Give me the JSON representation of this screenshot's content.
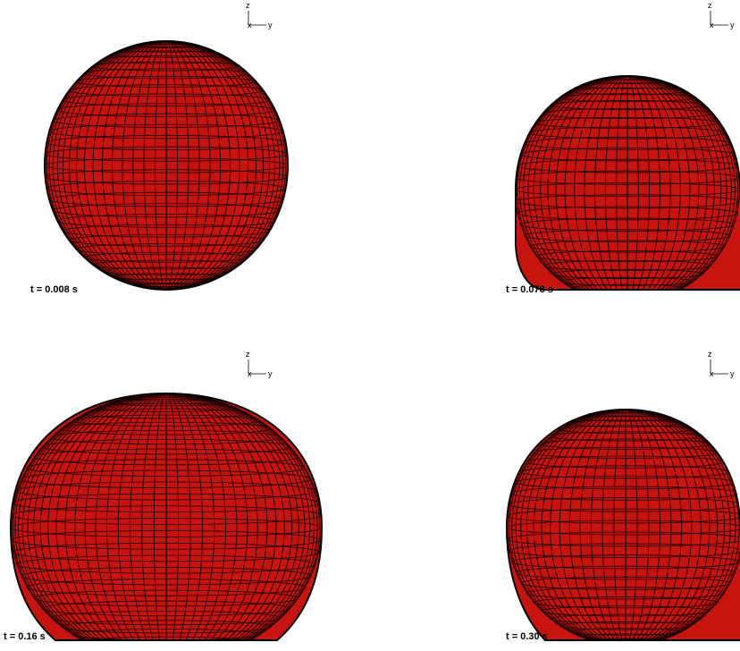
{
  "panels": [
    {
      "time_label": "t = 0.008 s",
      "shape": "sphere"
    },
    {
      "time_label": "t = 0.078 s",
      "shape": "flattened-bottom"
    },
    {
      "time_label": "t = 0.16 s",
      "shape": "spread-drop"
    },
    {
      "time_label": "t = 0.30 s",
      "shape": "rebounded-drop"
    }
  ],
  "axes_triad": {
    "vertical": "z",
    "depth": "x",
    "horizontal": "y"
  },
  "colors": {
    "surface": "#c8140f",
    "mesh": "#1a0000",
    "outline": "#000000",
    "background": "#ffffff"
  }
}
